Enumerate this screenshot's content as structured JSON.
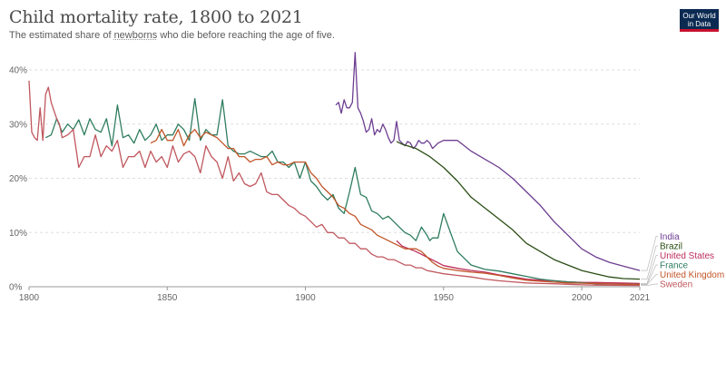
{
  "header": {
    "title": "Child mortality rate, 1800 to 2021",
    "subtitle_pre": "The estimated share of ",
    "subtitle_link": "newborns",
    "subtitle_post": " who die before reaching the age of five."
  },
  "logo": {
    "line1": "Our World",
    "line2": "in Data"
  },
  "chart_data": {
    "type": "line",
    "title": "Child mortality rate, 1800 to 2021",
    "subtitle": "The estimated share of newborns who die before reaching the age of five.",
    "xlim": [
      1800,
      2021
    ],
    "ylim": [
      0,
      40
    ],
    "x_ticks": [
      "1800",
      "1850",
      "1900",
      "1950",
      "2000",
      "2021"
    ],
    "y_ticks": [
      "0%",
      "10%",
      "20%",
      "30%",
      "40%"
    ],
    "grid": "horizontal dashed",
    "legend": "right, line labels",
    "series": [
      {
        "name": "India",
        "color": "#6d3e91",
        "x": [
          1911,
          1912,
          1913,
          1914,
          1915,
          1916,
          1917,
          1918,
          1919,
          1920,
          1921,
          1922,
          1923,
          1924,
          1925,
          1926,
          1927,
          1928,
          1929,
          1930,
          1931,
          1932,
          1933,
          1934,
          1935,
          1936,
          1937,
          1938,
          1939,
          1940,
          1941,
          1942,
          1943,
          1944,
          1945,
          1946,
          1947,
          1948,
          1950,
          1955,
          1960,
          1965,
          1970,
          1975,
          1980,
          1985,
          1990,
          1995,
          2000,
          2005,
          2010,
          2015,
          2021
        ],
        "y": [
          33.5,
          34,
          32,
          34.5,
          33,
          33,
          34,
          43.2,
          33,
          32,
          30.5,
          28.5,
          29,
          31,
          28,
          29,
          28.5,
          30,
          29,
          27.5,
          26.5,
          27,
          30.5,
          27,
          26.5,
          26,
          26.8,
          26.5,
          25.5,
          26,
          27,
          26.5,
          26.5,
          27,
          26.5,
          25.5,
          26,
          26.5,
          27,
          27,
          25,
          23.5,
          22,
          20,
          17.5,
          15,
          12,
          9.5,
          7,
          5.5,
          4.5,
          3.8,
          3
        ]
      },
      {
        "name": "Brazil",
        "color": "#2a4d14",
        "x": [
          1933,
          1935,
          1940,
          1945,
          1950,
          1955,
          1960,
          1965,
          1970,
          1975,
          1980,
          1985,
          1990,
          1995,
          2000,
          2005,
          2010,
          2015,
          2021
        ],
        "y": [
          26.8,
          26.3,
          25.5,
          24,
          22,
          19.5,
          16.5,
          14.5,
          12.5,
          10.5,
          8,
          6.5,
          5,
          4,
          3,
          2.4,
          1.8,
          1.5,
          1.4
        ]
      },
      {
        "name": "United States",
        "color": "#be2d5a",
        "x": [
          1933,
          1935,
          1940,
          1945,
          1950,
          1955,
          1960,
          1965,
          1970,
          1975,
          1980,
          1985,
          1990,
          1995,
          2000,
          2005,
          2010,
          2015,
          2021
        ],
        "y": [
          8.5,
          7.5,
          6.5,
          5.2,
          3.9,
          3.4,
          3.0,
          2.7,
          2.2,
          1.8,
          1.4,
          1.2,
          1.1,
          0.9,
          0.8,
          0.78,
          0.72,
          0.68,
          0.6
        ]
      },
      {
        "name": "France",
        "color": "#2f7d5f",
        "x": [
          1806,
          1808,
          1810,
          1812,
          1814,
          1816,
          1818,
          1820,
          1822,
          1824,
          1826,
          1828,
          1830,
          1832,
          1834,
          1836,
          1838,
          1840,
          1842,
          1844,
          1846,
          1848,
          1850,
          1852,
          1854,
          1856,
          1858,
          1860,
          1862,
          1864,
          1866,
          1868,
          1870,
          1872,
          1874,
          1876,
          1878,
          1880,
          1882,
          1884,
          1886,
          1888,
          1890,
          1892,
          1894,
          1896,
          1898,
          1900,
          1902,
          1904,
          1906,
          1908,
          1910,
          1912,
          1914,
          1916,
          1918,
          1920,
          1922,
          1924,
          1926,
          1928,
          1930,
          1932,
          1934,
          1936,
          1938,
          1940,
          1942,
          1944,
          1945,
          1946,
          1948,
          1950,
          1955,
          1960,
          1965,
          1970,
          1975,
          1980,
          1985,
          1990,
          1995,
          2000,
          2005,
          2010,
          2015,
          2021
        ],
        "y": [
          27.5,
          28,
          31,
          28.5,
          30,
          29,
          30.8,
          28,
          31,
          29,
          28.5,
          31,
          26,
          33.5,
          27.5,
          28,
          26.5,
          29,
          27,
          28,
          30,
          27,
          28,
          28,
          30,
          29,
          27,
          34.7,
          27,
          29,
          28,
          28,
          34.5,
          26,
          25,
          24.5,
          24.5,
          25,
          24.5,
          24,
          24,
          25,
          23,
          23,
          22,
          23,
          20,
          23,
          19.5,
          18.5,
          17,
          16,
          17,
          14.5,
          13.5,
          17.5,
          22,
          17,
          16.5,
          14,
          13.5,
          12.5,
          13,
          12,
          11,
          10,
          9.5,
          8.5,
          11,
          9.5,
          8.5,
          9,
          9,
          13.5,
          6.5,
          4,
          3.2,
          2.9,
          2.4,
          1.9,
          1.4,
          1.1,
          0.9,
          0.75,
          0.55,
          0.5,
          0.45,
          0.45
        ]
      },
      {
        "name": "United Kingdom",
        "color": "#c15528",
        "x": [
          1844,
          1846,
          1848,
          1850,
          1852,
          1854,
          1856,
          1858,
          1860,
          1862,
          1864,
          1866,
          1868,
          1870,
          1872,
          1874,
          1876,
          1878,
          1880,
          1882,
          1884,
          1886,
          1888,
          1890,
          1892,
          1894,
          1896,
          1898,
          1900,
          1902,
          1904,
          1906,
          1908,
          1910,
          1912,
          1914,
          1916,
          1918,
          1920,
          1922,
          1924,
          1926,
          1928,
          1930,
          1932,
          1934,
          1936,
          1938,
          1940,
          1942,
          1944,
          1946,
          1948,
          1950,
          1955,
          1960,
          1965,
          1970,
          1975,
          1980,
          1985,
          1990,
          1995,
          2000,
          2005,
          2010,
          2015,
          2021
        ],
        "y": [
          26.5,
          27,
          29,
          27,
          27,
          29,
          26,
          28,
          29,
          27.5,
          28.5,
          28,
          27.5,
          26.5,
          25.5,
          25.5,
          24,
          24,
          23,
          23.5,
          23.5,
          24,
          22.5,
          23,
          22.5,
          22.5,
          23,
          23,
          23,
          21,
          20,
          18.5,
          17.5,
          16.5,
          15,
          14.5,
          13.5,
          13,
          11.5,
          11,
          10.5,
          9.5,
          9,
          8.5,
          8,
          7.5,
          7,
          7,
          7,
          6.5,
          5.5,
          4.5,
          3.8,
          3.4,
          3,
          2.7,
          2.5,
          2.1,
          1.6,
          1.2,
          1.0,
          0.85,
          0.7,
          0.65,
          0.58,
          0.52,
          0.45,
          0.42
        ]
      },
      {
        "name": "Sweden",
        "color": "#c0575e",
        "x": [
          1800,
          1801,
          1802,
          1803,
          1804,
          1805,
          1806,
          1807,
          1808,
          1809,
          1810,
          1811,
          1812,
          1814,
          1816,
          1818,
          1820,
          1822,
          1824,
          1826,
          1828,
          1830,
          1832,
          1834,
          1836,
          1838,
          1840,
          1842,
          1844,
          1846,
          1848,
          1850,
          1852,
          1854,
          1856,
          1858,
          1860,
          1862,
          1864,
          1866,
          1868,
          1870,
          1872,
          1874,
          1876,
          1878,
          1880,
          1882,
          1884,
          1886,
          1888,
          1890,
          1892,
          1894,
          1896,
          1898,
          1900,
          1902,
          1904,
          1906,
          1908,
          1910,
          1912,
          1914,
          1916,
          1918,
          1920,
          1922,
          1924,
          1926,
          1928,
          1930,
          1932,
          1934,
          1936,
          1938,
          1940,
          1942,
          1944,
          1946,
          1948,
          1950,
          1955,
          1960,
          1965,
          1970,
          1975,
          1980,
          1985,
          1990,
          1995,
          2000,
          2005,
          2010,
          2015,
          2021
        ],
        "y": [
          38,
          28.5,
          27.5,
          27,
          33,
          27,
          35.5,
          36.8,
          34,
          32.5,
          31,
          30,
          27.5,
          28,
          29,
          22,
          24,
          24,
          28,
          24,
          26,
          25,
          27,
          22,
          24,
          24,
          25,
          22,
          25,
          23,
          24,
          22,
          26,
          23,
          24.5,
          25,
          24,
          21,
          26,
          24,
          23,
          20,
          24,
          19.5,
          21,
          19,
          18.5,
          19,
          21,
          17.5,
          17,
          17,
          16,
          15,
          14.5,
          13.5,
          13,
          12,
          11,
          11.5,
          10,
          10,
          9,
          9,
          8,
          8,
          7,
          7,
          6,
          5.5,
          5.5,
          5,
          5,
          4.5,
          4,
          4,
          3.5,
          3.5,
          3,
          2.8,
          2.6,
          2.4,
          2.1,
          1.8,
          1.4,
          1.1,
          0.9,
          0.7,
          0.6,
          0.55,
          0.45,
          0.35,
          0.3,
          0.28,
          0.25,
          0.24
        ]
      }
    ]
  }
}
